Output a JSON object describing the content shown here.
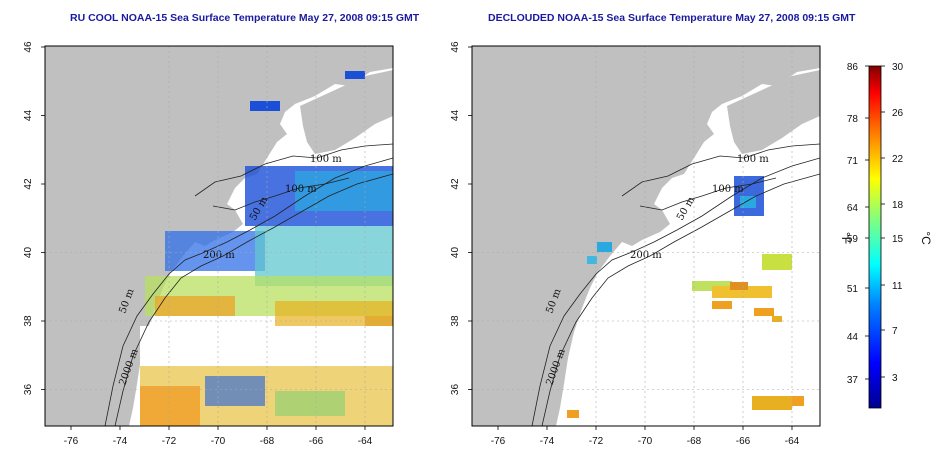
{
  "panels": [
    {
      "title": "RU COOL NOAA-15 Sea Surface Temperature May 27, 2008 09:15 GMT"
    },
    {
      "title": "DECLOUDED NOAA-15 Sea Surface Temperature May 27, 2008 09:15 GMT"
    }
  ],
  "axes": {
    "x_ticks": [
      "-76",
      "-74",
      "-72",
      "-70",
      "-68",
      "-66",
      "-64"
    ],
    "y_ticks": [
      "46",
      "44",
      "42",
      "40",
      "38",
      "36"
    ]
  },
  "contour_labels": {
    "left": [
      "100 m",
      "100 m",
      "50 m",
      "200 m",
      "50 m",
      "2000 m"
    ],
    "right": [
      "100 m",
      "100 m",
      "50 m",
      "200 m",
      "50 m",
      "2000 m"
    ]
  },
  "colorbar": {
    "fahrenheit_ticks": [
      "86",
      "78",
      "71",
      "64",
      "59",
      "51",
      "44",
      "37"
    ],
    "celsius_ticks": [
      "30",
      "26",
      "22",
      "18",
      "15",
      "11",
      "7",
      "3"
    ],
    "left_unit": "°F",
    "right_unit": "°C",
    "colors": [
      "#00008f",
      "#0000ff",
      "#0080ff",
      "#00ffff",
      "#80ff80",
      "#ffff00",
      "#ff8000",
      "#ff0000",
      "#800000"
    ]
  },
  "colors": {
    "land": "#c0c0c0",
    "ocean": "#ffffff",
    "grid": "#aaaaaa",
    "title": "#1a1aa0"
  }
}
